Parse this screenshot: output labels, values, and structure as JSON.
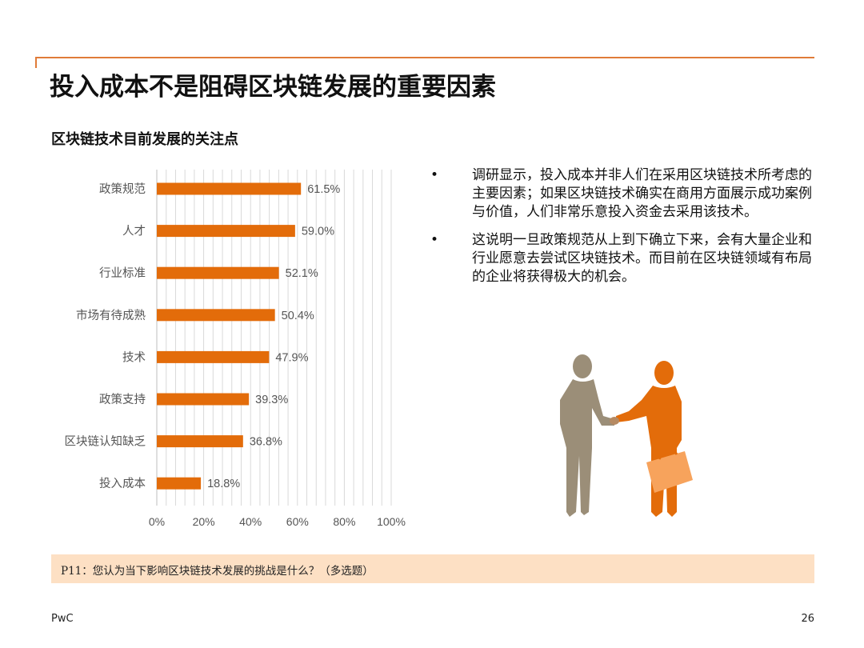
{
  "title": "投入成本不是阻碍区块链发展的重要因素",
  "subtitle": "区块链技术目前发展的关注点",
  "colors": {
    "bar": "#e36c0a",
    "accent_rule": "#e07b39",
    "note_bg": "#fde0c4",
    "figure_left": "#9b8e78",
    "figure_right": "#e36c0a",
    "briefcase": "#f7a35c"
  },
  "chart_data": {
    "type": "bar",
    "orientation": "horizontal",
    "categories": [
      "政策规范",
      "人才",
      "行业标准",
      "市场有待成熟",
      "技术",
      "政策支持",
      "区块链认知缺乏",
      "投入成本"
    ],
    "values": [
      61.5,
      59.0,
      52.1,
      50.4,
      47.9,
      39.3,
      36.8,
      18.8
    ],
    "value_labels": [
      "61.5%",
      "59.0%",
      "52.1%",
      "50.4%",
      "47.9%",
      "39.3%",
      "36.8%",
      "18.8%"
    ],
    "x_ticks": [
      "0%",
      "20%",
      "40%",
      "60%",
      "80%",
      "100%"
    ],
    "xlim": [
      0,
      100
    ],
    "grid": true,
    "legend": "none"
  },
  "bullets": [
    {
      "marker": "•",
      "text": "调研显示，投入成本并非人们在采用区块链技术所考虑的主要因素；如果区块链技术确实在商用方面展示成功案例与价值，人们非常乐意投入资金去采用该技术。"
    },
    {
      "marker": "•",
      "text": "这说明一旦政策规范从上到下确立下来，会有大量企业和行业愿意去尝试区块链技术。而目前在区块链领域有布局的企业将获得极大的机会。"
    }
  ],
  "note": "P11：您认为当下影响区块链技术发展的挑战是什么？（多选题）",
  "footer": {
    "brand": "PwC",
    "page_number": "26"
  },
  "illustration": {
    "icon": "handshake-businessmen-icon"
  }
}
